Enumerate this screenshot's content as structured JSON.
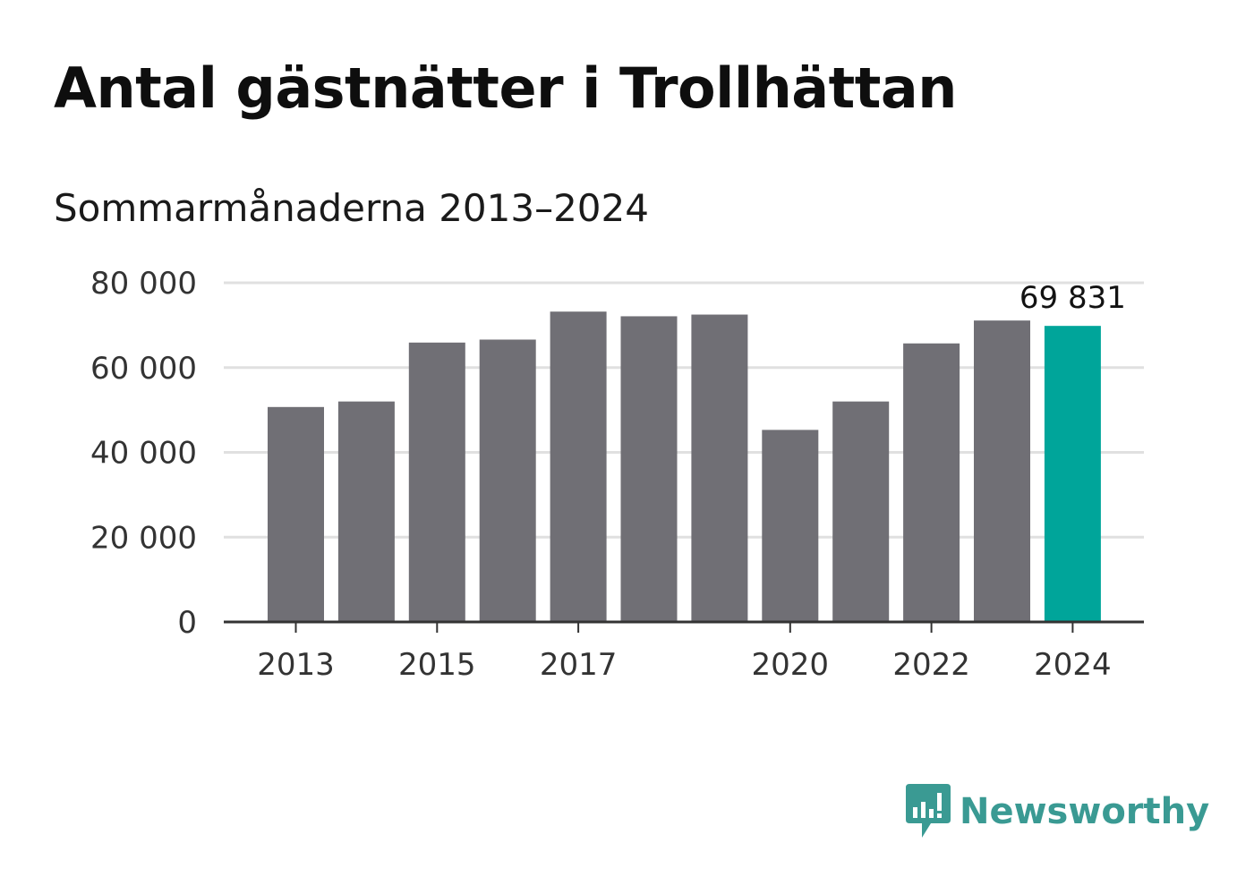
{
  "title": "Antal gästnätter i Trollhättan",
  "subtitle": "Sommarmånaderna 2013–2024",
  "brand": {
    "name": "Newsworthy",
    "icon": "newsworthy-logo-icon",
    "color": "#3a9a93"
  },
  "colors": {
    "bar": "#706f75",
    "highlight": "#00a59a",
    "grid": "#e0e0e0",
    "axis": "#333333"
  },
  "chart_data": {
    "type": "bar",
    "title": "Antal gästnätter i Trollhättan",
    "subtitle": "Sommarmånaderna 2013–2024",
    "xlabel": "",
    "ylabel": "",
    "categories": [
      "2013",
      "2014",
      "2015",
      "2016",
      "2017",
      "2018",
      "2019",
      "2020",
      "2021",
      "2022",
      "2023",
      "2024"
    ],
    "x_tick_labels": [
      "2013",
      "2015",
      "2017",
      "2020",
      "2022",
      "2024"
    ],
    "values": [
      50700,
      52000,
      65900,
      66600,
      73200,
      72100,
      72500,
      45300,
      52000,
      65700,
      71100,
      69831
    ],
    "highlight": {
      "category": "2024",
      "label": "69 831"
    },
    "ylim": [
      0,
      80000
    ],
    "y_ticks": [
      {
        "value": 0,
        "label": "0"
      },
      {
        "value": 20000,
        "label": "20 000"
      },
      {
        "value": 40000,
        "label": "40 000"
      },
      {
        "value": 60000,
        "label": "60 000"
      },
      {
        "value": 80000,
        "label": "80 000"
      }
    ],
    "grid": true,
    "legend": "none"
  }
}
